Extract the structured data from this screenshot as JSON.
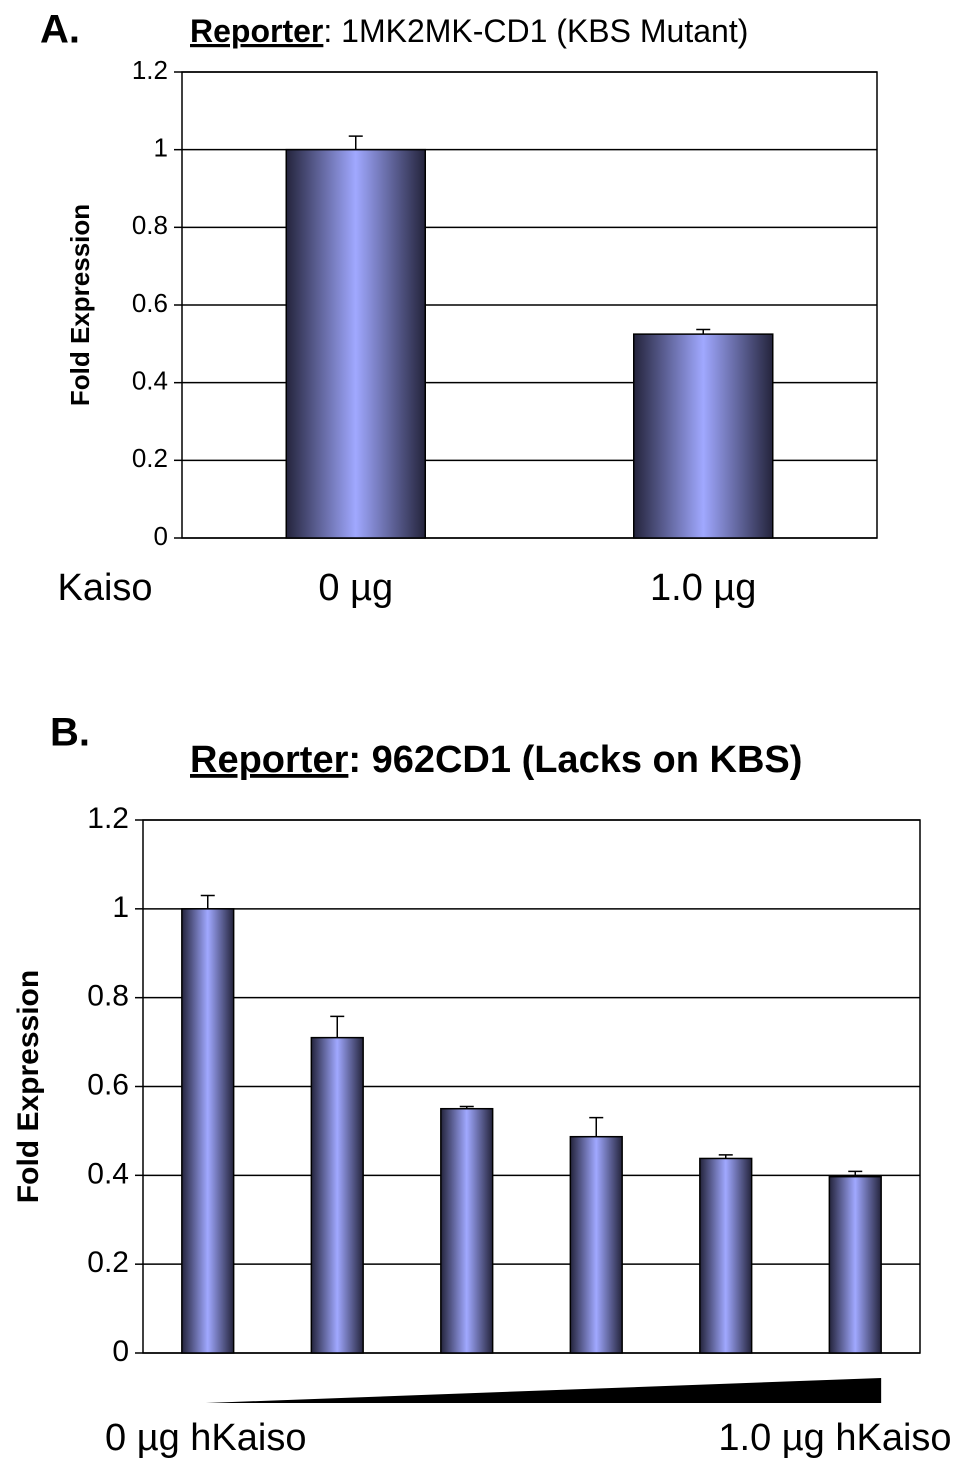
{
  "chart_data": [
    {
      "type": "bar",
      "panel_label": "A.",
      "title": "Reporter",
      "title_rest": ": 1MK2MK-CD1 (KBS Mutant)",
      "ylabel": "Fold Expression",
      "row_label": "Kaiso",
      "categories": [
        "0 µg",
        "1.0 µg"
      ],
      "values": [
        1.0,
        0.525
      ],
      "errors": [
        0.035,
        0.012
      ],
      "ylim": [
        0,
        1.2
      ],
      "yticks": [
        0,
        0.2,
        0.4,
        0.6,
        0.8,
        1,
        1.2
      ],
      "grid": true,
      "color": "#a0a8ff"
    },
    {
      "type": "bar",
      "panel_label": "B.",
      "title": "Reporter",
      "title_rest": ": 962CD1 (Lacks on KBS)",
      "ylabel": "Fold Expression",
      "range_labels": [
        "0 µg hKaiso",
        "1.0 µg hKaiso"
      ],
      "categories": [
        null,
        null,
        null,
        null,
        null,
        null
      ],
      "values": [
        1.0,
        0.71,
        0.55,
        0.487,
        0.438,
        0.397
      ],
      "errors": [
        0.03,
        0.048,
        0.005,
        0.043,
        0.008,
        0.012
      ],
      "ylim": [
        0,
        1.2
      ],
      "yticks": [
        0,
        0.2,
        0.4,
        0.6,
        0.8,
        1,
        1.2
      ],
      "grid": true,
      "color": "#a0a8ff"
    }
  ]
}
